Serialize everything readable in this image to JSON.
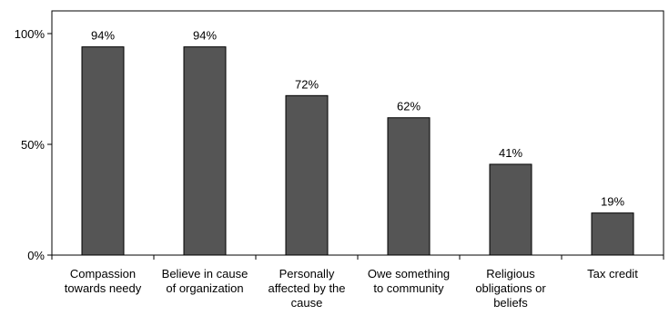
{
  "chart_data": {
    "type": "bar",
    "title": "",
    "xlabel": "",
    "ylabel": "",
    "categories": [
      [
        "Compassion",
        "towards needy"
      ],
      [
        "Believe in cause",
        "of organization"
      ],
      [
        "Personally",
        "affected by the",
        "cause"
      ],
      [
        "Owe something",
        "to community"
      ],
      [
        "Religious",
        "obligations or",
        "beliefs"
      ],
      [
        "Tax credit"
      ]
    ],
    "values": [
      94,
      94,
      72,
      62,
      41,
      19
    ],
    "data_labels": [
      "94%",
      "94%",
      "72%",
      "62%",
      "41%",
      "19%"
    ],
    "ylim": [
      0,
      100
    ],
    "yticks": [
      0,
      50,
      100
    ],
    "ytick_labels": [
      "0%",
      "50%",
      "100%"
    ],
    "grid": false,
    "legend": "none",
    "colors": {
      "bar_fill": "#555555",
      "bar_stroke": "#000000",
      "axis": "#000000"
    }
  }
}
